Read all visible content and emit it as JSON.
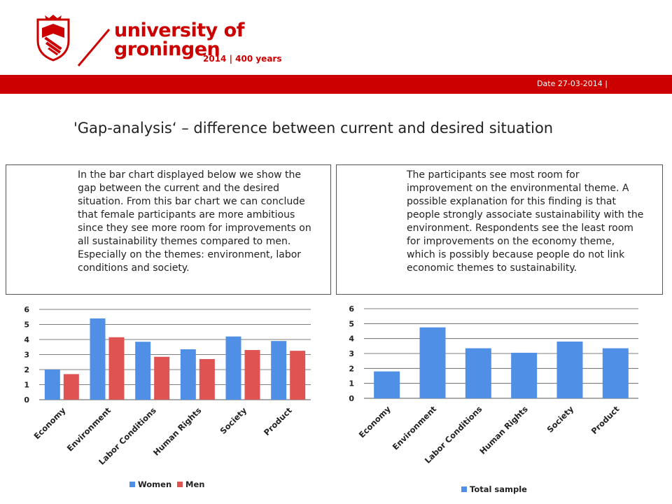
{
  "header": {
    "logo_lines": [
      "university of",
      "groningen"
    ],
    "logo_sub": "2014 | 400 years",
    "date": "Date 27-03-2014 |"
  },
  "title": "'Gap-analysis‘ – difference between current and desired situation",
  "box_left": "In the bar chart displayed below we show the gap between the current and the desired situation. From this bar chart we can conclude that female participants are more ambitious since they see more room for improvements on all sustainability themes compared to men. Especially on the themes: environment, labor conditions and society.",
  "box_right": "The participants see most room for improvement on the environmental theme. A possible explanation for this finding is that people strongly associate sustainability with the environment. Respondents see the least room for improvements on the economy theme, which is possibly because people do not link economic themes to sustainability.",
  "colors": {
    "brand_red": "#cc0000",
    "women": "#4f8fe6",
    "men": "#e05353",
    "total": "#4f8fe6"
  },
  "chart_data": [
    {
      "type": "bar",
      "categories": [
        "Economy",
        "Environment",
        "Labor Conditions",
        "Human Rights",
        "Society",
        "Product"
      ],
      "series": [
        {
          "name": "Women",
          "values": [
            2.0,
            5.4,
            3.85,
            3.35,
            4.2,
            3.9
          ]
        },
        {
          "name": "Men",
          "values": [
            1.7,
            4.15,
            2.85,
            2.7,
            3.3,
            3.25
          ]
        }
      ],
      "ylim": [
        0,
        6
      ],
      "yticks": [
        "0",
        "1",
        "2",
        "3",
        "4",
        "5",
        "6"
      ],
      "grid": true,
      "legend": "bottom"
    },
    {
      "type": "bar",
      "categories": [
        "Economy",
        "Environment",
        "Labor Conditions",
        "Human Rights",
        "Society",
        "Product"
      ],
      "series": [
        {
          "name": "Total sample",
          "values": [
            1.8,
            4.75,
            3.35,
            3.05,
            3.8,
            3.35
          ]
        }
      ],
      "ylim": [
        0,
        6
      ],
      "yticks": [
        "0",
        "1",
        "2",
        "3",
        "4",
        "5",
        "6"
      ],
      "grid": true,
      "legend": "bottom"
    }
  ]
}
